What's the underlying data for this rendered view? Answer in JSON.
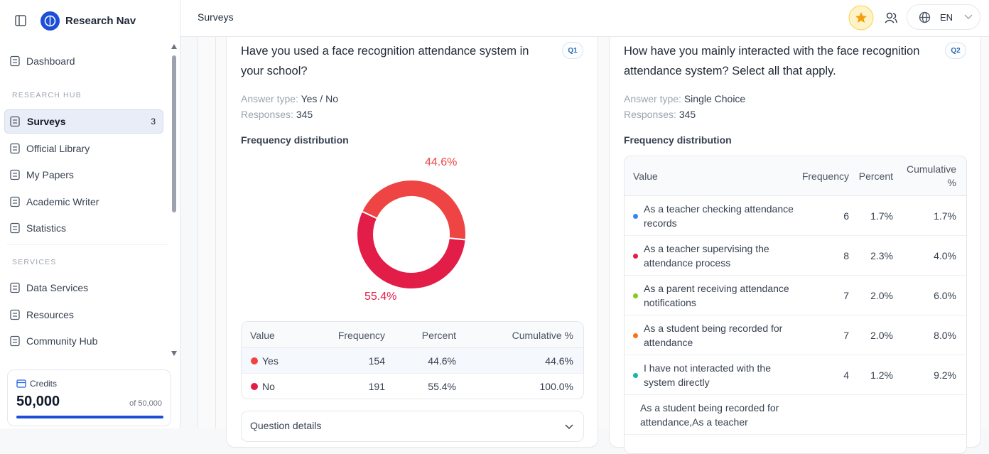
{
  "sidebar": {
    "brand": "Research Nav",
    "top_items": [
      "Dashboard"
    ],
    "sections": [
      {
        "title": "RESEARCH HUB",
        "items": [
          {
            "label": "Surveys",
            "badge": 3
          },
          {
            "label": "Official Library"
          },
          {
            "label": "My Papers"
          },
          {
            "label": "Academic Writer"
          },
          {
            "label": "Statistics"
          }
        ]
      },
      {
        "title": "SERVICES",
        "items": [
          {
            "label": "Data Services"
          },
          {
            "label": "Resources"
          },
          {
            "label": "Community Hub"
          }
        ]
      }
    ],
    "credits": {
      "label": "Credits",
      "value": "50,000",
      "total": "of 50,000"
    }
  },
  "topbar": {
    "title": "Surveys",
    "language": "EN"
  },
  "questions": [
    {
      "badge": "Q1",
      "title": "Have you used a face recognition attendance system in your school?",
      "answer_type_label": "Answer type:",
      "answer_type": "Yes / No",
      "responses_label": "Responses:",
      "responses": 345,
      "section": "Frequency distribution",
      "chart": {
        "type": "donut",
        "values": [
          44.6,
          55.4
        ],
        "value_labels": [
          "44.6%",
          "55.4%"
        ],
        "colors": [
          "#ef4444",
          "#e11d48"
        ]
      },
      "table": {
        "header": [
          "Value",
          "Frequency",
          "Percent",
          "Cumulative %"
        ],
        "rows": [
          [
            "Yes",
            154,
            "44.6%",
            "44.6%"
          ],
          [
            "No",
            191,
            "55.4%",
            "100.0%"
          ]
        ]
      },
      "details": "Question details"
    },
    {
      "badge": "Q2",
      "title": "How have you mainly interacted with the face recognition attendance system? Select all that apply.",
      "answer_type_label": "Answer type:",
      "answer_type": "Single Choice",
      "responses_label": "Responses:",
      "responses": 345,
      "section": "Frequency distribution",
      "table": {
        "header": [
          "Value",
          "Frequency",
          "Percent",
          "Cumulative %"
        ],
        "colors": [
          "#3b82f6",
          "#e11d48",
          "#84cc16",
          "#f97316",
          "#14b8a6"
        ],
        "rows": [
          [
            "As a teacher checking attendance records",
            6,
            "1.7%",
            "1.7%"
          ],
          [
            "As a teacher supervising the attendance process",
            8,
            "2.3%",
            "4.0%"
          ],
          [
            "As a parent receiving attendance notifications",
            7,
            "2.0%",
            "6.0%"
          ],
          [
            "As a student being recorded for attendance",
            7,
            "2.0%",
            "8.0%"
          ],
          [
            "I have not interacted with the system directly",
            4,
            "1.2%",
            "9.2%"
          ],
          [
            "As a student being recorded for attendance,As a teacher"
          ]
        ]
      }
    }
  ]
}
